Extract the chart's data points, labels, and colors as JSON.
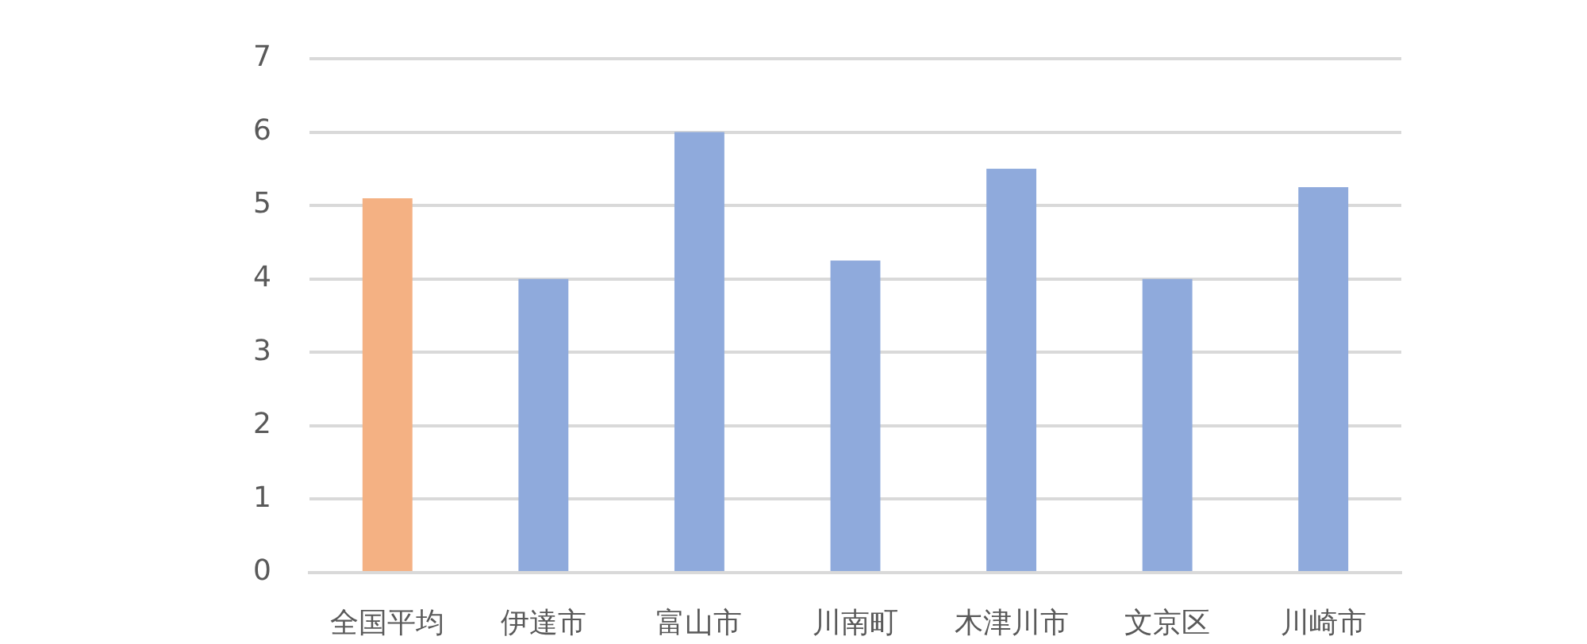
{
  "chart_data": {
    "type": "bar",
    "categories": [
      "全国平均",
      "伊達市",
      "富山市",
      "川南町",
      "木津川市",
      "文京区",
      "川崎市"
    ],
    "values": [
      5.1,
      4,
      6,
      4.25,
      5.5,
      4,
      5.25
    ],
    "colors": [
      "#f4b183",
      "#8faadc",
      "#8faadc",
      "#8faadc",
      "#8faadc",
      "#8faadc",
      "#8faadc"
    ],
    "ylim": [
      0,
      7
    ],
    "yticks": [
      0,
      1,
      2,
      3,
      4,
      5,
      6,
      7
    ],
    "grid": "y"
  }
}
